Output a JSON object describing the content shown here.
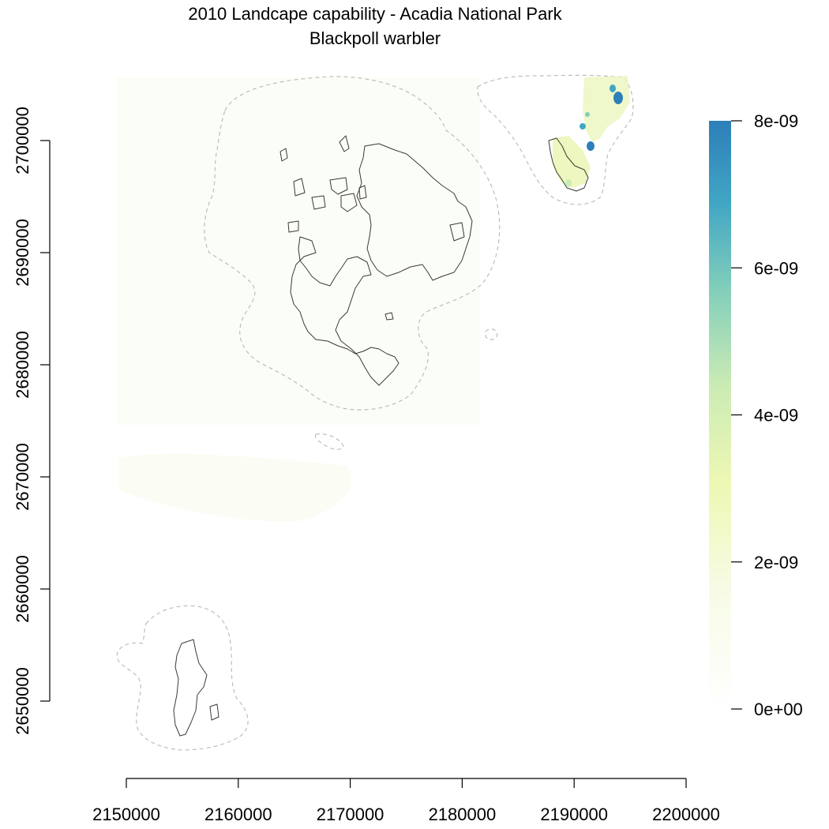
{
  "title": "2010 Landcape capability - Acadia National Park",
  "subtitle": "Blackpoll warbler",
  "x_axis": {
    "ticks": [
      "2150000",
      "2160000",
      "2170000",
      "2180000",
      "2190000",
      "2200000"
    ],
    "values": [
      2150000,
      2160000,
      2170000,
      2180000,
      2190000,
      2200000
    ],
    "range": [
      2150000,
      2200000
    ]
  },
  "y_axis": {
    "ticks": [
      "2650000",
      "2660000",
      "2670000",
      "2680000",
      "2690000",
      "2700000"
    ],
    "values": [
      2650000,
      2660000,
      2670000,
      2680000,
      2690000,
      2700000
    ],
    "range": [
      2650000,
      2700000
    ]
  },
  "legend": {
    "labels": [
      "0e+00",
      "2e-09",
      "4e-09",
      "6e-09",
      "8e-09"
    ],
    "values": [
      0,
      2e-09,
      4e-09,
      6e-09,
      8e-09
    ],
    "range": [
      0,
      8e-09
    ],
    "colors": [
      "#ffffff",
      "#f7fbe6",
      "#eef8b4",
      "#cbebb4",
      "#7fcdbb",
      "#41a6c4",
      "#2c7fb8"
    ]
  },
  "colors": {
    "buffer_line": "#b8b8b8",
    "park_boundary": "#3a3a3a",
    "low_value": "#f0f7c8",
    "high_value": "#2c7fb8"
  }
}
